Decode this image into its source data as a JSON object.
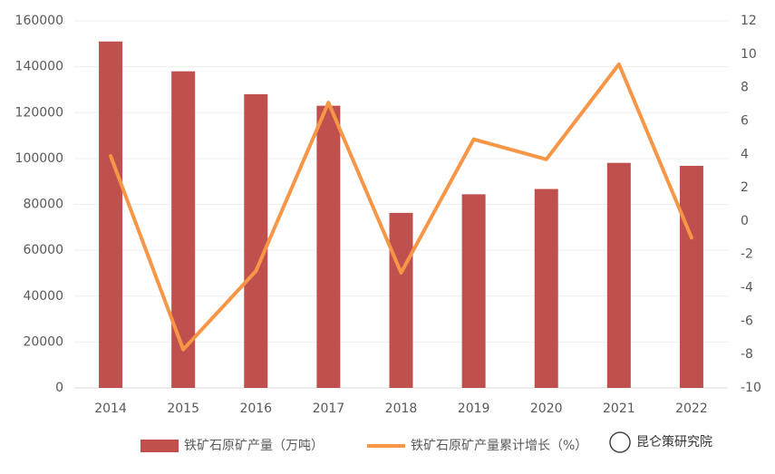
{
  "chart_data": {
    "type": "bar",
    "categories": [
      "2014",
      "2015",
      "2016",
      "2017",
      "2018",
      "2019",
      "2020",
      "2021",
      "2022"
    ],
    "series": [
      {
        "name": "铁矿石原矿产量（万吨）",
        "color": "#c0504d",
        "type": "bar",
        "values": [
          151000,
          138000,
          128000,
          123000,
          76300,
          84400,
          86700,
          98100,
          96800
        ]
      },
      {
        "name": "铁矿石原矿产量累计增长（%）",
        "color": "#f79646",
        "type": "line",
        "axis": "y2",
        "values": [
          3.9,
          -7.7,
          -3.0,
          7.1,
          -3.1,
          4.9,
          3.7,
          9.4,
          -1.0
        ]
      }
    ],
    "ylim": [
      0,
      160000
    ],
    "yticks": [
      0,
      20000,
      40000,
      60000,
      80000,
      100000,
      120000,
      140000,
      160000
    ],
    "y2lim": [
      -10,
      12
    ],
    "y2ticks": [
      -10,
      -8,
      -6,
      -4,
      -2,
      0,
      2,
      4,
      6,
      8,
      10,
      12
    ],
    "grid": true,
    "legend": "bottom",
    "watermark": "昆仑策研究院"
  }
}
